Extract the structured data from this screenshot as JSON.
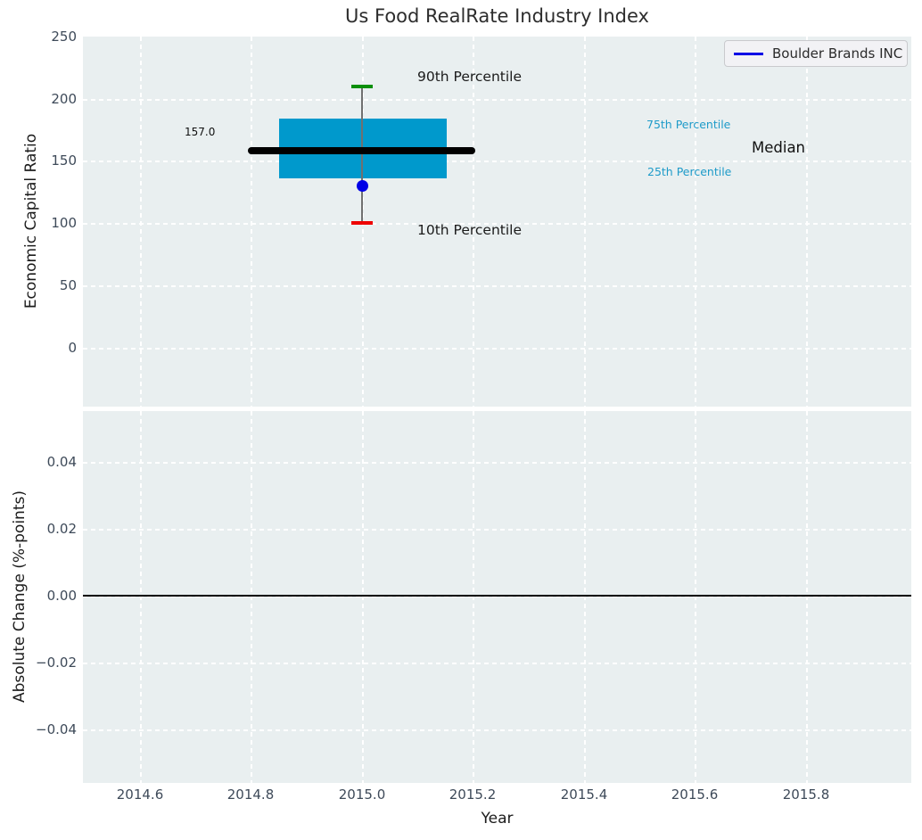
{
  "title": "Us Food RealRate Industry Index",
  "legend": {
    "label": "Boulder Brands INC",
    "line_color": "#0000e6"
  },
  "top_axes": {
    "ylabel": "Economic Capital Ratio",
    "yticks": [
      "250",
      "200",
      "150",
      "100",
      "50",
      "0"
    ],
    "annotations": {
      "p90": "90th Percentile",
      "p75": "75th Percentile",
      "median": "Median",
      "p25": "25th Percentile",
      "p10": "10th Percentile",
      "median_value": "157.0"
    }
  },
  "bottom_axes": {
    "ylabel": "Absolute Change (%-points)",
    "yticks": [
      "0.04",
      "0.02",
      "0.00",
      "−0.02",
      "−0.04"
    ]
  },
  "xaxis": {
    "label": "Year",
    "ticks": [
      "2014.6",
      "2014.8",
      "2015.0",
      "2015.2",
      "2015.4",
      "2015.6",
      "2015.8"
    ]
  },
  "colors": {
    "plot_background": "#e9eff0",
    "grid": "#ffffff",
    "box_fill": "#0099cc",
    "median_line": "#000000",
    "p90_cap": "#0a8f0a",
    "p10_cap": "#ee0000",
    "company_marker": "#0000e6",
    "percentile_text": "#1e9bc9",
    "tick_text": "#3e4a59"
  },
  "chart_data": [
    {
      "type": "box",
      "title": "Us Food RealRate Industry Index",
      "ylabel": "Economic Capital Ratio",
      "xlabel": "",
      "grid": true,
      "xlim": [
        2014.5,
        2016.0
      ],
      "ylim": [
        -48,
        250
      ],
      "yticks": [
        0,
        50,
        100,
        150,
        200,
        250
      ],
      "x": 2015.0,
      "box": {
        "p10": 100,
        "p25": 135,
        "median": 157,
        "p75": 183,
        "p90": 209,
        "box_x_range": [
          2014.85,
          2015.15
        ],
        "median_x_range": [
          2014.79,
          2015.21
        ]
      },
      "median_label": "157.0",
      "series": [
        {
          "name": "Boulder Brands INC",
          "type": "scatter",
          "x": [
            2015.0
          ],
          "y": [
            130
          ]
        }
      ],
      "annotations": [
        "90th Percentile",
        "75th Percentile",
        "Median",
        "25th Percentile",
        "10th Percentile"
      ],
      "legend_entries": [
        "Boulder Brands INC"
      ],
      "legend_position": "upper right"
    },
    {
      "type": "line",
      "title": "",
      "ylabel": "Absolute Change (%-points)",
      "xlabel": "Year",
      "grid": true,
      "xlim": [
        2014.5,
        2016.0
      ],
      "ylim": [
        -0.056,
        0.056
      ],
      "yticks": [
        -0.04,
        -0.02,
        0.0,
        0.02,
        0.04
      ],
      "xticks": [
        2014.6,
        2014.8,
        2015.0,
        2015.2,
        2015.4,
        2015.6,
        2015.8
      ],
      "zero_line_y": 0.0,
      "series": []
    }
  ]
}
